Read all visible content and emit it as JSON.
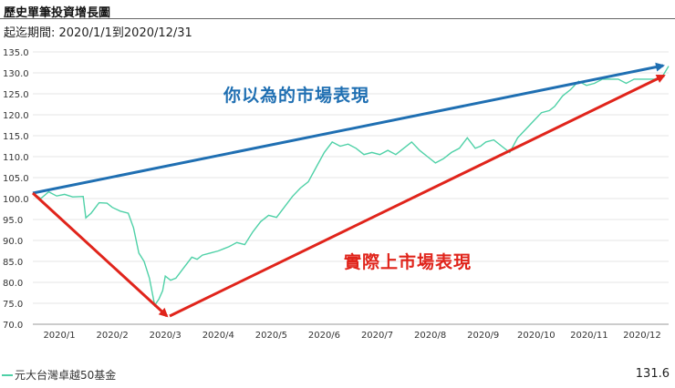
{
  "header": {
    "title": "歷史單筆投資增長圖",
    "period": "起迄期間: 2020/1/1到2020/12/31"
  },
  "annotations": {
    "perceived": "你以為的市場表現",
    "actual": "實際上市場表現"
  },
  "legend": {
    "series_name": "元大台灣卓越50基金",
    "last_value": "131.6"
  },
  "colors": {
    "series": "#4fd1a7",
    "perceived_arrow": "#1f6fb2",
    "actual_arrow": "#e0241b",
    "grid": "#e6e6e6"
  },
  "chart_data": {
    "type": "line",
    "title": "歷史單筆投資增長圖",
    "xlabel": "",
    "ylabel": "",
    "ylim": [
      70,
      135
    ],
    "xlim": [
      0,
      12
    ],
    "grid": true,
    "legend_position": "bottom-left",
    "y_ticks": [
      "70.0",
      "75.0",
      "80.0",
      "85.0",
      "90.0",
      "95.0",
      "100.0",
      "105.0",
      "110.0",
      "115.0",
      "120.0",
      "125.0",
      "130.0",
      "135.0"
    ],
    "x_ticks": [
      {
        "label": "2020/1",
        "x": 0.5
      },
      {
        "label": "2020/2",
        "x": 1.5
      },
      {
        "label": "2020/3",
        "x": 2.5
      },
      {
        "label": "2020/4",
        "x": 3.5
      },
      {
        "label": "2020/5",
        "x": 4.5
      },
      {
        "label": "2020/6",
        "x": 5.5
      },
      {
        "label": "2020/7",
        "x": 6.5
      },
      {
        "label": "2020/8",
        "x": 7.5
      },
      {
        "label": "2020/9",
        "x": 8.5
      },
      {
        "label": "2020/10",
        "x": 9.5
      },
      {
        "label": "2020/11",
        "x": 10.5
      },
      {
        "label": "2020/12",
        "x": 11.5
      }
    ],
    "series": [
      {
        "name": "元大台灣卓越50基金",
        "x": [
          0,
          0.15,
          0.3,
          0.45,
          0.6,
          0.75,
          0.95,
          1.0,
          1.1,
          1.25,
          1.4,
          1.5,
          1.65,
          1.8,
          1.9,
          2.0,
          2.1,
          2.2,
          2.3,
          2.38,
          2.45,
          2.5,
          2.6,
          2.7,
          2.85,
          3.0,
          3.1,
          3.2,
          3.35,
          3.5,
          3.6,
          3.7,
          3.85,
          4.0,
          4.15,
          4.3,
          4.45,
          4.6,
          4.75,
          4.9,
          5.05,
          5.2,
          5.35,
          5.5,
          5.65,
          5.8,
          5.95,
          6.1,
          6.25,
          6.4,
          6.55,
          6.7,
          6.85,
          7.0,
          7.15,
          7.3,
          7.45,
          7.6,
          7.75,
          7.9,
          8.05,
          8.2,
          8.35,
          8.45,
          8.55,
          8.7,
          8.85,
          9.0,
          9.15,
          9.3,
          9.45,
          9.6,
          9.75,
          9.85,
          10.0,
          10.15,
          10.3,
          10.45,
          10.6,
          10.75,
          10.9,
          11.05,
          11.2,
          11.35,
          11.5,
          11.65,
          11.8,
          11.9,
          12.0
        ],
        "values": [
          101.3,
          100.0,
          101.6,
          100.6,
          101.0,
          100.4,
          100.5,
          95.4,
          96.5,
          99.0,
          98.9,
          97.9,
          97.0,
          96.5,
          93.0,
          87.0,
          85.0,
          81.0,
          74.5,
          76.0,
          78.0,
          81.5,
          80.5,
          81.0,
          83.5,
          86.0,
          85.5,
          86.5,
          87.0,
          87.5,
          88.0,
          88.5,
          89.5,
          89.0,
          92.0,
          94.5,
          96.0,
          95.5,
          98.0,
          100.5,
          102.5,
          104.0,
          107.5,
          111.0,
          113.5,
          112.5,
          113.0,
          112.0,
          110.5,
          111.0,
          110.5,
          111.5,
          110.5,
          112.0,
          113.5,
          111.5,
          110.0,
          108.5,
          109.5,
          111.0,
          112.0,
          114.5,
          112.0,
          112.5,
          113.5,
          114.0,
          112.5,
          111.0,
          114.5,
          116.5,
          118.5,
          120.5,
          121.0,
          122.0,
          124.5,
          126.0,
          128.0,
          127.0,
          127.5,
          128.5,
          128.5,
          128.5,
          127.5,
          128.5,
          128.5,
          128.5,
          128.5,
          129.5,
          131.6
        ]
      }
    ]
  }
}
